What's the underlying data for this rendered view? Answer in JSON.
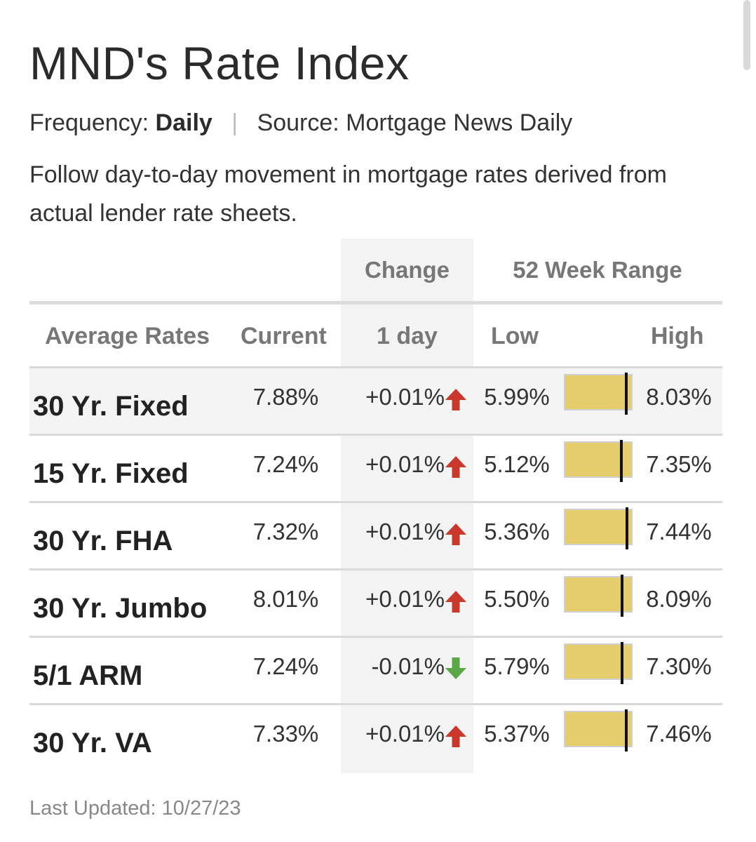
{
  "header": {
    "title": "MND's Rate Index",
    "frequency_label": "Frequency:",
    "frequency_value": "Daily",
    "separator": "|",
    "source": "Source: Mortgage News Daily",
    "description": "Follow day-to-day movement in mortgage rates derived from actual lender rate sheets."
  },
  "table": {
    "group_headers": {
      "change": "Change",
      "range": "52 Week Range"
    },
    "columns": {
      "average_rates": "Average Rates",
      "current": "Current",
      "one_day": "1 day",
      "low": "Low",
      "high": "High"
    },
    "rows": [
      {
        "name": "30 Yr. Fixed",
        "current": "7.88%",
        "change": "+0.01%",
        "direction": "up",
        "low": "5.99%",
        "high": "8.03%",
        "range_position": 0.93
      },
      {
        "name": "15 Yr. Fixed",
        "current": "7.24%",
        "change": "+0.01%",
        "direction": "up",
        "low": "5.12%",
        "high": "7.35%",
        "range_position": 0.85
      },
      {
        "name": "30 Yr. FHA",
        "current": "7.32%",
        "change": "+0.01%",
        "direction": "up",
        "low": "5.36%",
        "high": "7.44%",
        "range_position": 0.94
      },
      {
        "name": "30 Yr. Jumbo",
        "current": "8.01%",
        "change": "+0.01%",
        "direction": "up",
        "low": "5.50%",
        "high": "8.09%",
        "range_position": 0.86
      },
      {
        "name": "5/1 ARM",
        "current": "7.24%",
        "change": "-0.01%",
        "direction": "down",
        "low": "5.79%",
        "high": "7.30%",
        "range_position": 0.86
      },
      {
        "name": "30 Yr. VA",
        "current": "7.33%",
        "change": "+0.01%",
        "direction": "up",
        "low": "5.37%",
        "high": "7.46%",
        "range_position": 0.93
      }
    ]
  },
  "footer": {
    "last_updated": "Last Updated: 10/27/23"
  },
  "colors": {
    "up_arrow": "#c9382b",
    "down_arrow": "#5aa845",
    "range_bar": "#e6cd6c",
    "range_marker": "#111111"
  },
  "icons": {
    "up": "arrow-up-icon",
    "down": "arrow-down-icon"
  }
}
